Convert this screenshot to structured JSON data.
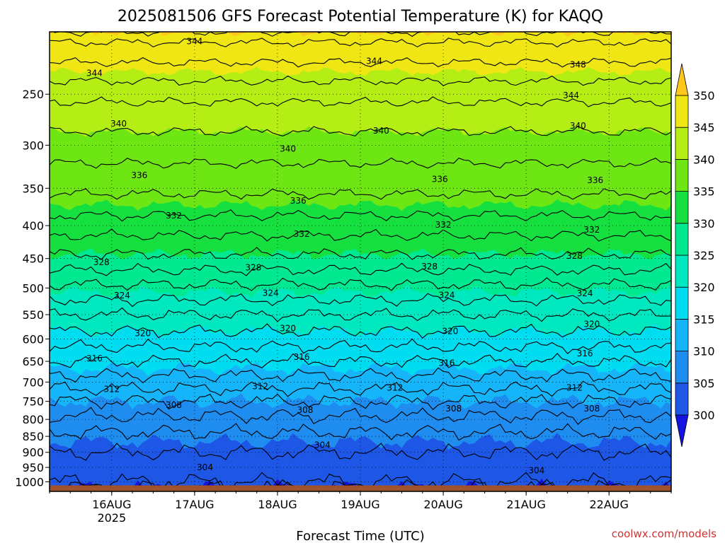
{
  "chart_data": {
    "type": "contour",
    "title": "2025081506 GFS Forecast Potential Temperature (K) for KAQQ",
    "xlabel": "Forecast Time (UTC)",
    "ylabel": "",
    "credit": "coolwx.com/models",
    "x_ticks": [
      {
        "label": "16AUG",
        "sublabel": "2025",
        "hours": 18
      },
      {
        "label": "17AUG",
        "hours": 42
      },
      {
        "label": "18AUG",
        "hours": 66
      },
      {
        "label": "19AUG",
        "hours": 90
      },
      {
        "label": "20AUG",
        "hours": 114
      },
      {
        "label": "21AUG",
        "hours": 138
      },
      {
        "label": "22AUG",
        "hours": 162
      }
    ],
    "x_range_hours": [
      0,
      180
    ],
    "y_axis": {
      "unit": "hPa",
      "reversed": true,
      "range": [
        200,
        1035
      ],
      "ticks": [
        250,
        300,
        350,
        400,
        450,
        500,
        550,
        600,
        650,
        700,
        750,
        800,
        850,
        900,
        950,
        1000
      ]
    },
    "colorbar": {
      "levels": [
        300,
        305,
        310,
        315,
        320,
        325,
        330,
        335,
        340,
        345,
        350
      ],
      "colors": [
        "#1414e0",
        "#1e56e6",
        "#1f8cf0",
        "#16b4f8",
        "#00dcf0",
        "#00e8c0",
        "#00e890",
        "#16e040",
        "#6ee614",
        "#b4ee14",
        "#f0e614",
        "#ffc61e"
      ],
      "extend": "both"
    },
    "contour_interval": 2,
    "contour_labels": [
      {
        "value": 344,
        "label": "344",
        "hours": 42,
        "p": 207
      },
      {
        "value": 344,
        "label": "344",
        "hours": 13,
        "p": 232
      },
      {
        "value": 344,
        "label": "344",
        "hours": 94,
        "p": 222
      },
      {
        "value": 348,
        "label": "348",
        "hours": 153,
        "p": 225
      },
      {
        "value": 344,
        "label": "344",
        "hours": 151,
        "p": 251
      },
      {
        "value": 340,
        "label": "340",
        "hours": 20,
        "p": 278
      },
      {
        "value": 340,
        "label": "340",
        "hours": 96,
        "p": 285
      },
      {
        "value": 340,
        "label": "340",
        "hours": 69,
        "p": 304
      },
      {
        "value": 340,
        "label": "340",
        "hours": 153,
        "p": 280
      },
      {
        "value": 336,
        "label": "336",
        "hours": 26,
        "p": 334
      },
      {
        "value": 336,
        "label": "336",
        "hours": 113,
        "p": 339
      },
      {
        "value": 336,
        "label": "336",
        "hours": 72,
        "p": 366
      },
      {
        "value": 336,
        "label": "336",
        "hours": 158,
        "p": 340
      },
      {
        "value": 332,
        "label": "332",
        "hours": 36,
        "p": 386
      },
      {
        "value": 332,
        "label": "332",
        "hours": 73,
        "p": 412
      },
      {
        "value": 332,
        "label": "332",
        "hours": 114,
        "p": 399
      },
      {
        "value": 332,
        "label": "332",
        "hours": 157,
        "p": 406
      },
      {
        "value": 328,
        "label": "328",
        "hours": 15,
        "p": 456
      },
      {
        "value": 328,
        "label": "328",
        "hours": 59,
        "p": 465
      },
      {
        "value": 328,
        "label": "328",
        "hours": 110,
        "p": 463
      },
      {
        "value": 328,
        "label": "328",
        "hours": 152,
        "p": 446
      },
      {
        "value": 324,
        "label": "324",
        "hours": 21,
        "p": 514
      },
      {
        "value": 324,
        "label": "324",
        "hours": 64,
        "p": 509
      },
      {
        "value": 324,
        "label": "324",
        "hours": 115,
        "p": 513
      },
      {
        "value": 324,
        "label": "324",
        "hours": 155,
        "p": 510
      },
      {
        "value": 320,
        "label": "320",
        "hours": 27,
        "p": 588
      },
      {
        "value": 320,
        "label": "320",
        "hours": 69,
        "p": 578
      },
      {
        "value": 320,
        "label": "320",
        "hours": 116,
        "p": 584
      },
      {
        "value": 320,
        "label": "320",
        "hours": 157,
        "p": 569
      },
      {
        "value": 316,
        "label": "316",
        "hours": 13,
        "p": 643
      },
      {
        "value": 316,
        "label": "316",
        "hours": 73,
        "p": 640
      },
      {
        "value": 316,
        "label": "316",
        "hours": 115,
        "p": 654
      },
      {
        "value": 316,
        "label": "316",
        "hours": 155,
        "p": 632
      },
      {
        "value": 312,
        "label": "312",
        "hours": 18,
        "p": 718
      },
      {
        "value": 312,
        "label": "312",
        "hours": 61,
        "p": 711
      },
      {
        "value": 312,
        "label": "312",
        "hours": 100,
        "p": 715
      },
      {
        "value": 312,
        "label": "312",
        "hours": 152,
        "p": 715
      },
      {
        "value": 308,
        "label": "308",
        "hours": 36,
        "p": 760
      },
      {
        "value": 308,
        "label": "308",
        "hours": 74,
        "p": 774
      },
      {
        "value": 308,
        "label": "308",
        "hours": 117,
        "p": 770
      },
      {
        "value": 308,
        "label": "308",
        "hours": 157,
        "p": 770
      },
      {
        "value": 304,
        "label": "304",
        "hours": 79,
        "p": 877
      },
      {
        "value": 304,
        "label": "304",
        "hours": 45,
        "p": 950
      },
      {
        "value": 304,
        "label": "304",
        "hours": 141,
        "p": 960
      }
    ],
    "profile": [
      {
        "p": 200,
        "theta": 349
      },
      {
        "p": 250,
        "theta": 342.5
      },
      {
        "p": 300,
        "theta": 339
      },
      {
        "p": 350,
        "theta": 336.5
      },
      {
        "p": 400,
        "theta": 333
      },
      {
        "p": 450,
        "theta": 329.5
      },
      {
        "p": 500,
        "theta": 325.5
      },
      {
        "p": 550,
        "theta": 322
      },
      {
        "p": 600,
        "theta": 319
      },
      {
        "p": 650,
        "theta": 316
      },
      {
        "p": 700,
        "theta": 313
      },
      {
        "p": 750,
        "theta": 310
      },
      {
        "p": 800,
        "theta": 307.5
      },
      {
        "p": 850,
        "theta": 305.5
      },
      {
        "p": 900,
        "theta": 304
      },
      {
        "p": 950,
        "theta": 303
      },
      {
        "p": 1000,
        "theta": 302
      },
      {
        "p": 1025,
        "theta": 300.5
      }
    ]
  }
}
